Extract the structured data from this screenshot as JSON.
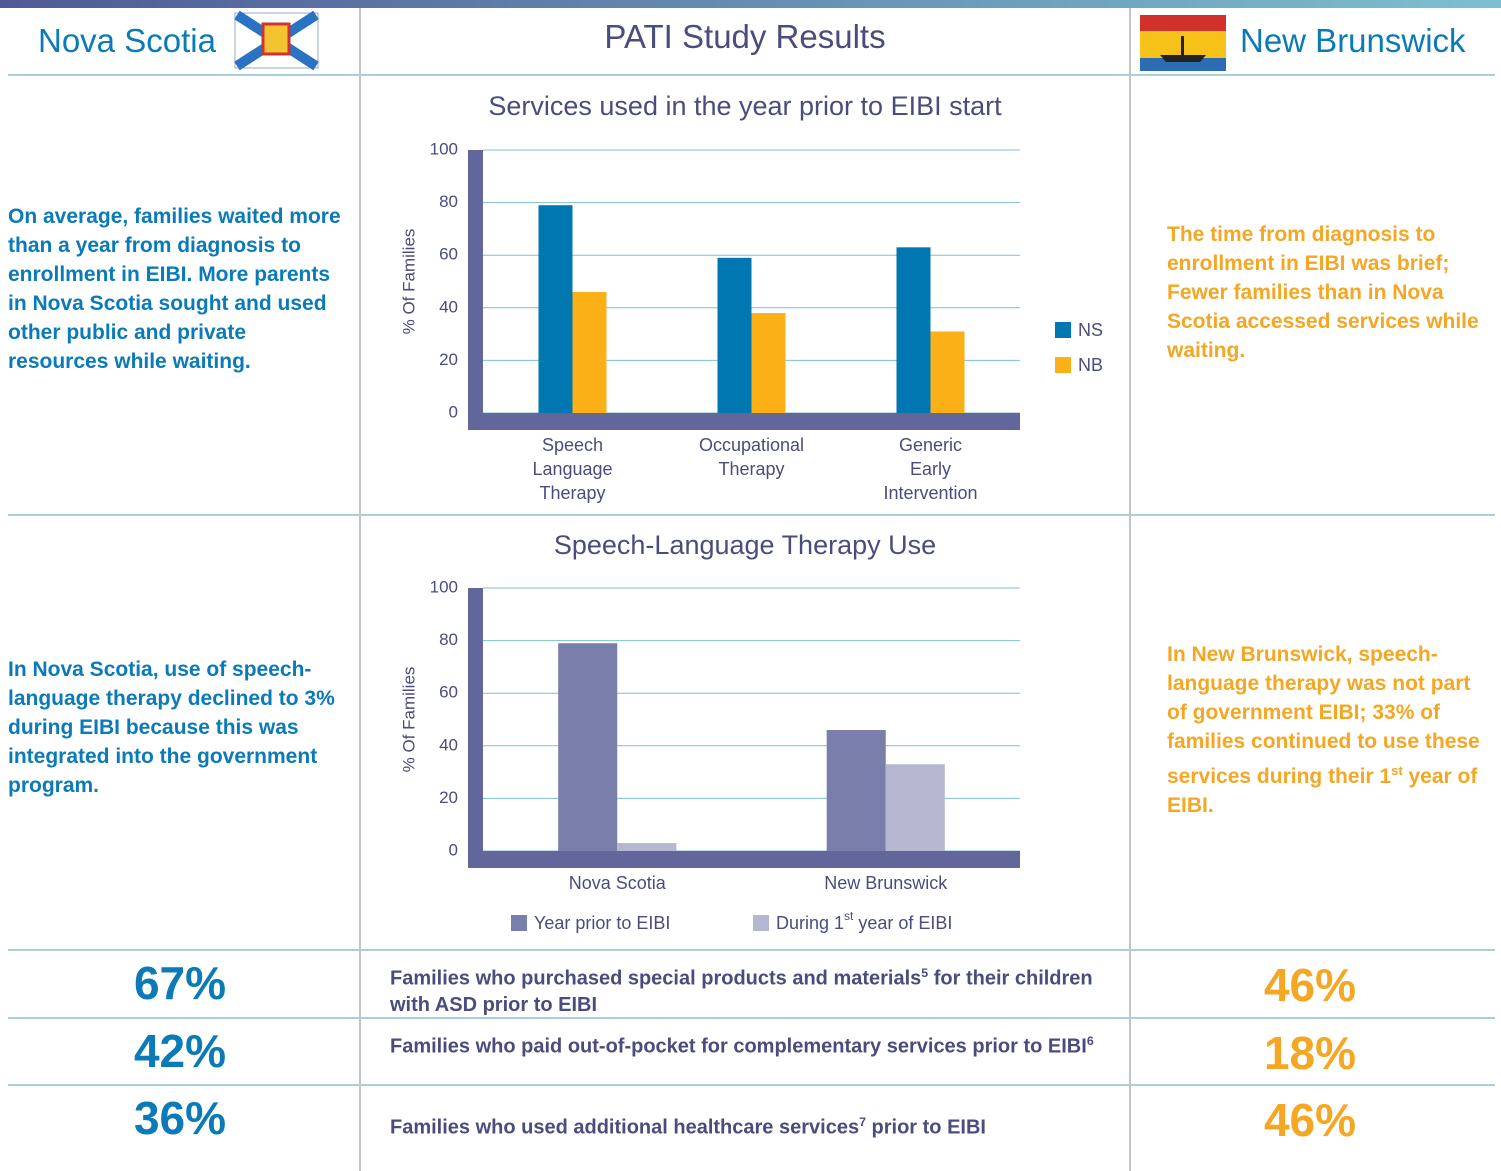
{
  "header": {
    "left": "Nova Scotia",
    "center": "PATI Study Results",
    "right": "New Brunswick"
  },
  "rows": [
    {
      "left": [
        {
          "t": "On average, families waited more than a year from diagnosis to enrollment in EIBI. More parents in Nova Scotia sought and used other public and private resources while waiting."
        }
      ],
      "right": [
        {
          "t": "The time from diagnosis to enrollment in EIBI was brief; Fewer families than in Nova Scotia accessed services while waiting."
        }
      ]
    },
    {
      "left": [
        {
          "t": "In Nova Scotia, use of speech-language therapy declined to 3% during EIBI because this was integrated into the government program."
        }
      ],
      "right": [
        {
          "t": "In New Brunswick, speech-language therapy was not part of government EIBI; 33% of families continued to use these services during their 1"
        },
        {
          "sup": "st"
        },
        {
          "t": " year of EIBI."
        }
      ]
    }
  ],
  "chart_data": [
    {
      "type": "bar",
      "title": "Services used in the year prior to EIBI start",
      "ylabel": "% Of Families",
      "categories": [
        "Speech Language Therapy",
        "Occupational Therapy",
        "Generic Early Intervention"
      ],
      "series": [
        {
          "name": "NS",
          "color": "#0077b0",
          "values": [
            79,
            59,
            63
          ]
        },
        {
          "name": "NB",
          "color": "#fbb017",
          "values": [
            46,
            38,
            31
          ]
        }
      ],
      "ylim": [
        0,
        100
      ],
      "yticks": [
        0,
        20,
        40,
        60,
        80,
        100
      ],
      "grid": true,
      "legend": "right"
    },
    {
      "type": "bar",
      "title": "Speech-Language Therapy Use",
      "ylabel": "% Of Families",
      "categories": [
        "Nova Scotia",
        "New Brunswick"
      ],
      "series": [
        {
          "name": "Year prior to EIBI",
          "color": "#7a7eaa",
          "values": [
            79,
            46
          ]
        },
        {
          "name": "During 1st year of EIBI",
          "color": "#b5b7d1",
          "values": [
            3,
            33
          ]
        }
      ],
      "ylim": [
        0,
        100
      ],
      "yticks": [
        0,
        20,
        40,
        60,
        80,
        100
      ],
      "grid": true,
      "legend": "bottom"
    }
  ],
  "stats": [
    {
      "left": "67%",
      "label": [
        {
          "t": "Families who purchased special products and materials"
        },
        {
          "sup": "5"
        },
        {
          "t": "  for their children with ASD prior to EIBI"
        }
      ],
      "right": "46%"
    },
    {
      "left": "42%",
      "label": [
        {
          "t": "Families who paid out-of-pocket for complementary services prior to EIBI"
        },
        {
          "sup": "6"
        }
      ],
      "right": "18%"
    },
    {
      "left": "36%",
      "label": [
        {
          "t": "Families who used additional healthcare services"
        },
        {
          "sup": "7"
        },
        {
          "t": " prior to EIBI"
        }
      ],
      "right": "46%"
    }
  ]
}
